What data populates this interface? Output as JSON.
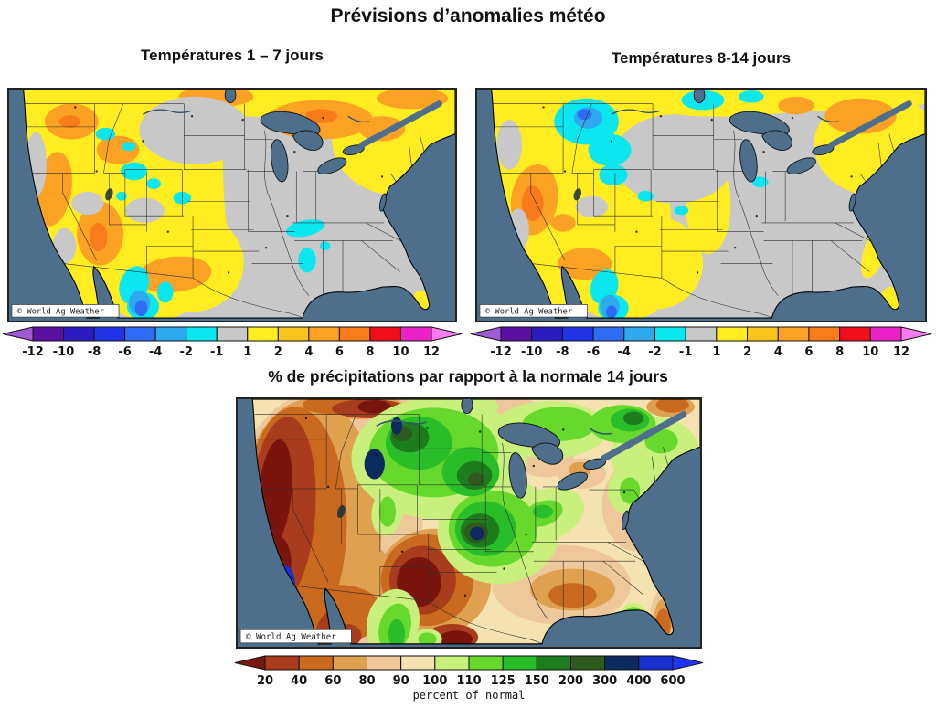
{
  "page": {
    "title": "Prévisions d’anomalies météo"
  },
  "panels": {
    "temp_1_7": {
      "title": "Températures 1 – 7 jours"
    },
    "temp_8_14": {
      "title": "Températures 8-14 jours"
    },
    "precip": {
      "title": "% de précipitations par rapport à la normale 14 jours"
    }
  },
  "watermark": "© World Ag Weather",
  "colors": {
    "ocean": "#4d6f8b",
    "land-neutral": "#c7c7c7",
    "precip-base": "#f4e3b0"
  },
  "temp_colorbar": {
    "labels": [
      "-12",
      "-10",
      "-8",
      "-6",
      "-4",
      "-2",
      "-1",
      "1",
      "2",
      "4",
      "6",
      "8",
      "10",
      "12"
    ],
    "segment_colors": [
      "#5a10a0",
      "#2a1cc0",
      "#2135e6",
      "#2e6cf6",
      "#2fa9ee",
      "#0ce6ef",
      "#c8c8c8",
      "#ffed21",
      "#f7c51c",
      "#fba124",
      "#f97c1b",
      "#f00f1b",
      "#ea22c8"
    ],
    "left_arrow_color": "#a05ad5",
    "right_arrow_color": "#fb7bf1"
  },
  "precip_colorbar": {
    "labels": [
      "20",
      "40",
      "60",
      "80",
      "90",
      "100",
      "110",
      "125",
      "150",
      "200",
      "300",
      "400",
      "600"
    ],
    "segment_colors": [
      "#a93c1c",
      "#c96a1e",
      "#dfa050",
      "#eec89a",
      "#f4e3b0",
      "#c9f07d",
      "#66d92c",
      "#2abd2a",
      "#1d7d1d",
      "#2f5a1e",
      "#0d2a5f",
      "#1631cd"
    ],
    "left_arrow_color": "#7a150d",
    "right_arrow_color": "#1f35ff",
    "caption": "percent of normal"
  }
}
